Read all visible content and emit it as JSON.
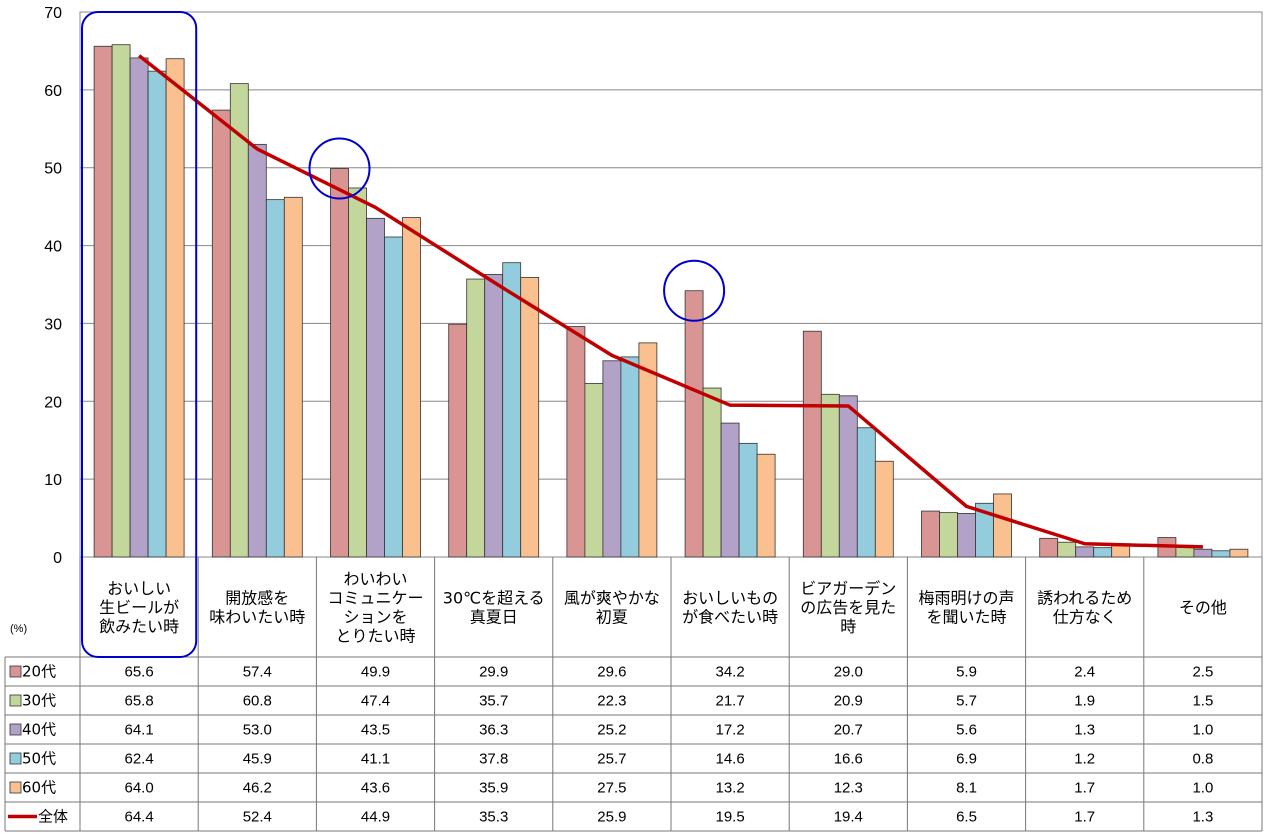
{
  "chart_data": {
    "type": "bar",
    "unit": "(%)",
    "ylim": [
      0,
      70
    ],
    "yticks": [
      0,
      10,
      20,
      30,
      40,
      50,
      60,
      70
    ],
    "grid": true,
    "categories": [
      [
        "おいしい",
        "生ビールが",
        "飲みたい時"
      ],
      [
        "開放感を",
        "味わいたい時"
      ],
      [
        "わいわい",
        "コミュニケー",
        "ションを",
        "とりたい時"
      ],
      [
        "30℃を超える",
        "真夏日"
      ],
      [
        "風が爽やかな",
        "初夏"
      ],
      [
        "おいしいもの",
        "が食べたい時"
      ],
      [
        "ビアガーデン",
        "の広告を見た",
        "時"
      ],
      [
        "梅雨明けの声",
        "を聞いた時"
      ],
      [
        "誘われるため",
        "仕方なく"
      ],
      [
        "その他"
      ]
    ],
    "series": [
      {
        "name": "20代",
        "kind": "bar",
        "color": "#D99594",
        "values": [
          65.6,
          57.4,
          49.9,
          29.9,
          29.6,
          34.2,
          29.0,
          5.9,
          2.4,
          2.5
        ]
      },
      {
        "name": "30代",
        "kind": "bar",
        "color": "#C3D69B",
        "values": [
          65.8,
          60.8,
          47.4,
          35.7,
          22.3,
          21.7,
          20.9,
          5.7,
          1.9,
          1.5
        ]
      },
      {
        "name": "40代",
        "kind": "bar",
        "color": "#B3A2C7",
        "values": [
          64.1,
          53.0,
          43.5,
          36.3,
          25.2,
          17.2,
          20.7,
          5.6,
          1.3,
          1.0
        ]
      },
      {
        "name": "50代",
        "kind": "bar",
        "color": "#93CDDD",
        "values": [
          62.4,
          45.9,
          41.1,
          37.8,
          25.7,
          14.6,
          16.6,
          6.9,
          1.2,
          0.8
        ]
      },
      {
        "name": "60代",
        "kind": "bar",
        "color": "#FAC090",
        "values": [
          64.0,
          46.2,
          43.6,
          35.9,
          27.5,
          13.2,
          12.3,
          8.1,
          1.7,
          1.0
        ]
      },
      {
        "name": "全体",
        "kind": "line",
        "color": "#C00000",
        "values": [
          64.4,
          52.4,
          44.9,
          35.3,
          25.9,
          19.5,
          19.4,
          6.5,
          1.7,
          1.3
        ]
      }
    ],
    "highlights": [
      {
        "shape": "rounded-rect",
        "category_index": 0,
        "color": "#0000CC"
      },
      {
        "shape": "circle",
        "category_index": 2,
        "series_index": 0,
        "color": "#0000CC"
      },
      {
        "shape": "circle",
        "category_index": 5,
        "series_index": 0,
        "color": "#0000CC"
      }
    ]
  }
}
